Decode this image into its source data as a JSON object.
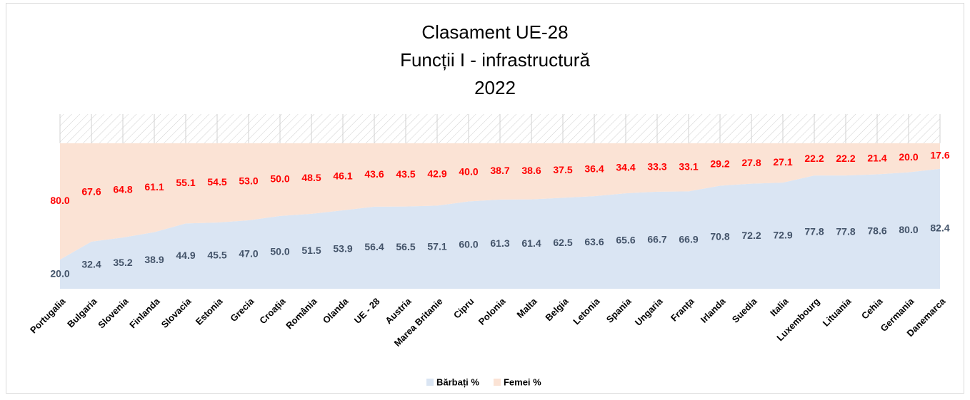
{
  "chart_data": {
    "type": "area",
    "title": [
      "Clasament UE-28",
      "Funcții I - infrastructură",
      "2022"
    ],
    "categories": [
      "Portugalia",
      "Bulgaria",
      "Slovenia",
      "Finlanda",
      "Slovacia",
      "Estonia",
      "Grecia",
      "Croația",
      "România",
      "Olanda",
      "UE - 28",
      "Austria",
      "Marea Britanie",
      "Cipru",
      "Polonia",
      "Malta",
      "Belgia",
      "Letonia",
      "Spania",
      "Ungaria",
      "Franța",
      "Irlanda",
      "Suedia",
      "Italia",
      "Luxembourg",
      "Lituania",
      "Cehia",
      "Germania",
      "Danemarca"
    ],
    "stacked": true,
    "series": [
      {
        "name": "Bărbați %",
        "color": "#dae5f3",
        "label_color": "#44546a",
        "values": [
          20.0,
          32.4,
          35.2,
          38.9,
          44.9,
          45.5,
          47.0,
          50.0,
          51.5,
          53.9,
          56.4,
          56.5,
          57.1,
          60.0,
          61.3,
          61.4,
          62.5,
          63.6,
          65.6,
          66.7,
          66.9,
          70.8,
          72.2,
          72.9,
          77.8,
          77.8,
          78.6,
          80.0,
          82.4
        ],
        "value_labels": [
          "20.0",
          "32.4",
          "35.2",
          "38.9",
          "44.9",
          "45.5",
          "47.0",
          "50.0",
          "51.5",
          "53.9",
          "56.4",
          "56.5",
          "57.1",
          "60.0",
          "61.3",
          "61.4",
          "62.5",
          "63.6",
          "65.6",
          "66.7",
          "66.9",
          "70.8",
          "72.2",
          "72.9",
          "77.8",
          "77.8",
          "78.6",
          "80.0",
          "82.4"
        ]
      },
      {
        "name": "Femei %",
        "color": "#fbe3d5",
        "label_color": "#ff0000",
        "values": [
          80.0,
          67.6,
          64.8,
          61.1,
          55.1,
          54.5,
          53.0,
          50.0,
          48.5,
          46.1,
          43.6,
          43.5,
          42.9,
          40.0,
          38.7,
          38.6,
          37.5,
          36.4,
          34.4,
          33.3,
          33.1,
          29.2,
          27.8,
          27.1,
          22.2,
          22.2,
          21.4,
          20.0,
          17.6
        ],
        "value_labels": [
          "80.0",
          "67.6",
          "64.8",
          "61.1",
          "55.1",
          "54.5",
          "53.0",
          "50.0",
          "48.5",
          "46.1",
          "43.6",
          "43.5",
          "42.9",
          "40.0",
          "38.7",
          "38.6",
          "37.5",
          "36.4",
          "34.4",
          "33.3",
          "33.1",
          "29.2",
          "27.8",
          "27.1",
          "22.2",
          "22.2",
          "21.4",
          "20.0",
          "17.6"
        ]
      }
    ],
    "ylim": [
      0,
      120
    ],
    "legend": "bottom"
  }
}
